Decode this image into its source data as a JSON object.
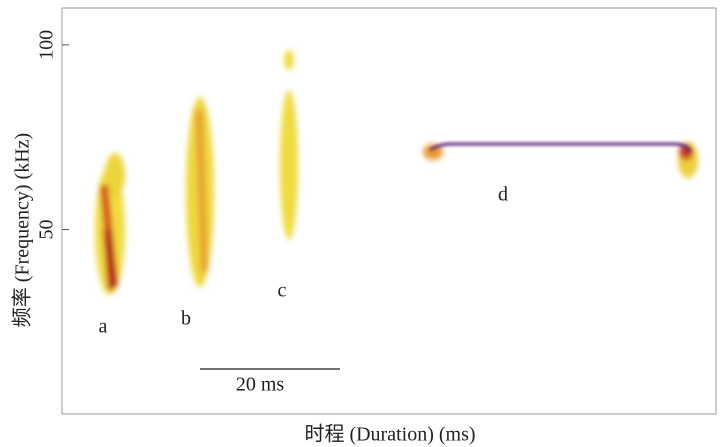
{
  "chart_data": {
    "type": "spectrogram",
    "y_label": "频率 (Frequency) (kHz)",
    "x_label": "时程 (Duration) (ms)",
    "ylim": [
      0,
      110
    ],
    "yticks": [
      50,
      100
    ],
    "annotations": [
      "a",
      "b",
      "c",
      "d"
    ],
    "scale_bar": "20 ms"
  }
}
